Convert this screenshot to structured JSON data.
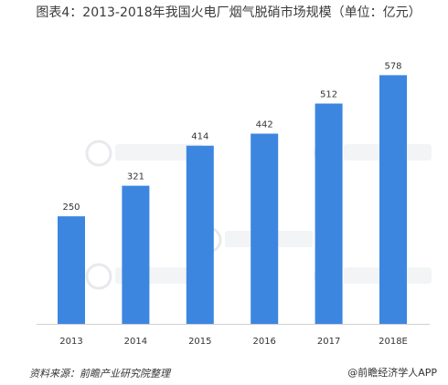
{
  "chart_data": {
    "type": "bar",
    "title": "图表4：2013-2018年我国火电厂烟气脱硝市场规模（单位：亿元）",
    "categories": [
      "2013",
      "2014",
      "2015",
      "2016",
      "2017",
      "2018E"
    ],
    "values": [
      250,
      321,
      414,
      442,
      512,
      578
    ],
    "data_labels": [
      "250",
      "321",
      "414",
      "442",
      "512",
      "578"
    ],
    "xlabel": "",
    "ylabel": "",
    "ylim": [
      0,
      600
    ],
    "grid": false,
    "legend": "none",
    "bar_color": "#3c86e0",
    "axis_color": "#d0d0d0"
  },
  "footer": {
    "source": "资料来源：前瞻产业研究院整理",
    "brand": "@前瞻经济学人APP"
  }
}
